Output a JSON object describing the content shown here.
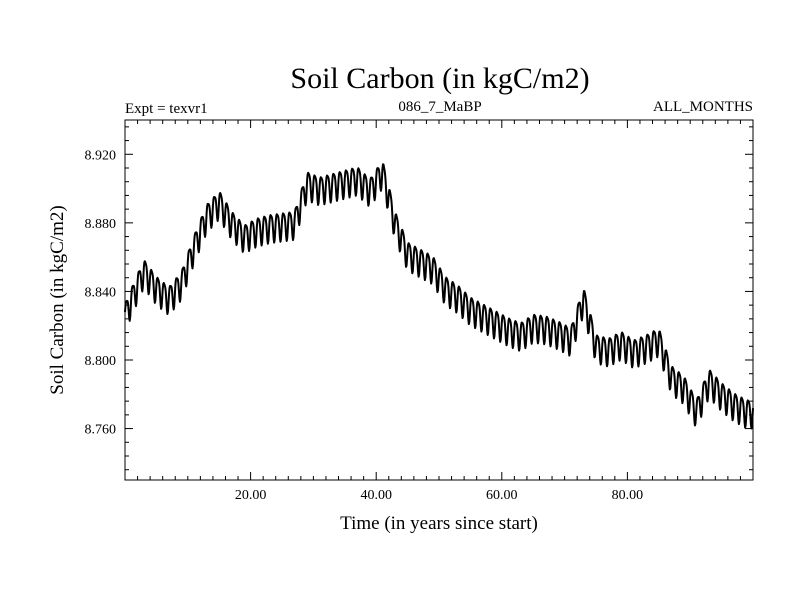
{
  "chart_data": {
    "type": "line",
    "title": "Soil Carbon (in kgC/m2)",
    "subtitle_left": "Expt = texvr1",
    "subtitle_center": "086_7_MaBP",
    "subtitle_right": "ALL_MONTHS",
    "xlabel": "Time (in years since start)",
    "ylabel": "Soil Carbon (in kgC/m2)",
    "xlim": [
      0,
      100
    ],
    "ylim": [
      8.73,
      8.94
    ],
    "xticks": [
      20,
      40,
      60,
      80
    ],
    "xtick_labels": [
      "20.00",
      "40.00",
      "60.00",
      "80.00"
    ],
    "yticks": [
      8.76,
      8.8,
      8.84,
      8.88,
      8.92
    ],
    "ytick_labels": [
      "8.760",
      "8.800",
      "8.840",
      "8.880",
      "8.920"
    ],
    "series_name": "Soil Carbon",
    "seasonal_amplitude": 0.008,
    "trend": {
      "x": [
        0,
        1,
        3,
        5,
        7,
        9,
        11,
        13,
        15,
        17,
        19,
        21,
        23,
        25,
        27,
        29,
        31,
        33,
        35,
        37,
        39,
        41,
        43,
        45,
        47,
        49,
        51,
        53,
        55,
        57,
        59,
        61,
        63,
        65,
        67,
        69,
        71,
        73,
        75,
        77,
        79,
        81,
        83,
        85,
        87,
        89,
        91,
        93,
        95,
        97,
        99,
        100
      ],
      "y": [
        8.826,
        8.835,
        8.852,
        8.842,
        8.836,
        8.845,
        8.866,
        8.884,
        8.892,
        8.88,
        8.872,
        8.876,
        8.878,
        8.879,
        8.88,
        8.903,
        8.9,
        8.902,
        8.904,
        8.906,
        8.899,
        8.91,
        8.88,
        8.862,
        8.858,
        8.854,
        8.842,
        8.837,
        8.83,
        8.826,
        8.822,
        8.818,
        8.815,
        8.82,
        8.819,
        8.816,
        8.812,
        8.836,
        8.808,
        8.806,
        8.81,
        8.805,
        8.808,
        8.812,
        8.79,
        8.784,
        8.77,
        8.788,
        8.78,
        8.774,
        8.77,
        8.77
      ]
    }
  }
}
